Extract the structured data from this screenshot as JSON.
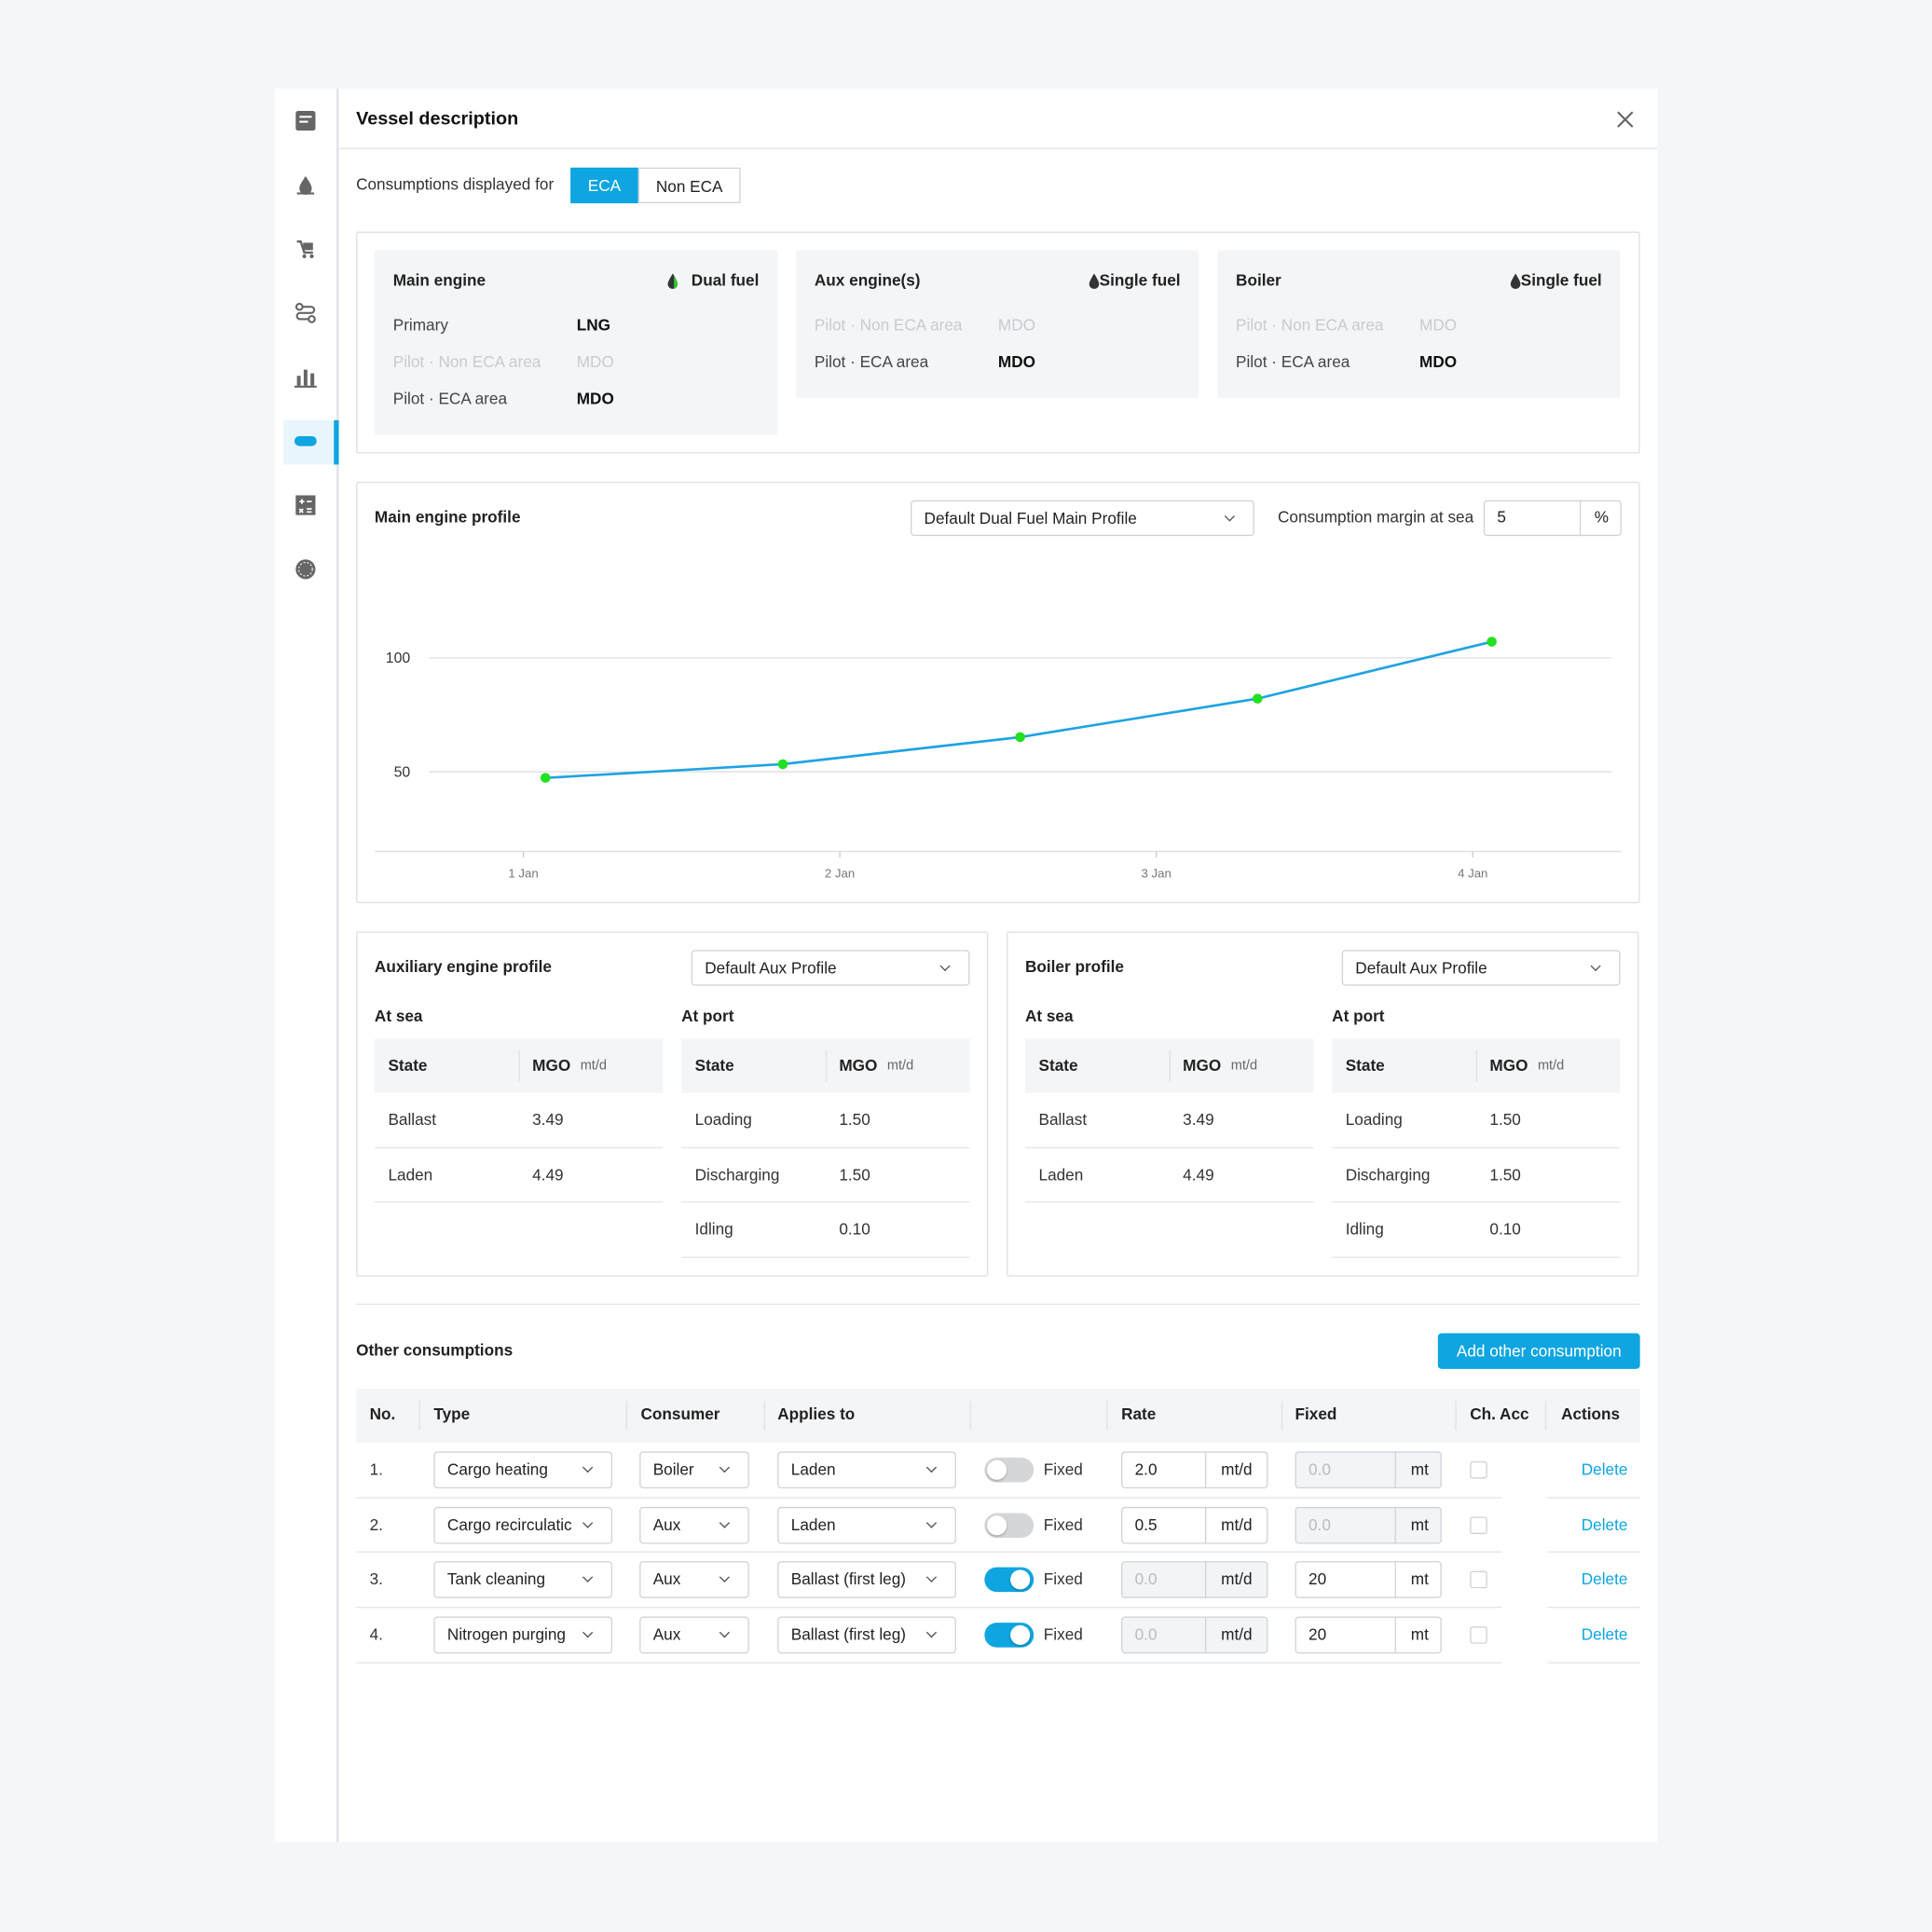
{
  "header": {
    "title": "Vessel description"
  },
  "display_toggle": {
    "label": "Consumptions displayed for",
    "options": [
      "ECA",
      "Non ECA"
    ],
    "selected": 0
  },
  "fuel_cards": [
    {
      "title": "Main engine",
      "fuel_type": "Dual fuel",
      "rows": [
        {
          "label": "Primary",
          "fuel": "LNG",
          "muted": false
        },
        {
          "label": "Pilot · Non ECA area",
          "fuel": "MDO",
          "muted": true
        },
        {
          "label": "Pilot · ECA area",
          "fuel": "MDO",
          "muted": false
        }
      ]
    },
    {
      "title": "Aux engine(s)",
      "fuel_type": "Single fuel",
      "rows": [
        {
          "label": "Pilot · Non ECA area",
          "fuel": "MDO",
          "muted": true
        },
        {
          "label": "Pilot · ECA area",
          "fuel": "MDO",
          "muted": false
        }
      ]
    },
    {
      "title": "Boiler",
      "fuel_type": "Single fuel",
      "rows": [
        {
          "label": "Pilot · Non ECA area",
          "fuel": "MDO",
          "muted": true
        },
        {
          "label": "Pilot · ECA area",
          "fuel": "MDO",
          "muted": false
        }
      ]
    }
  ],
  "main_engine_profile": {
    "title": "Main engine profile",
    "profile": "Default Dual Fuel Main Profile",
    "margin_label": "Consumption margin at sea",
    "margin_value": "5",
    "margin_unit": "%"
  },
  "chart_data": {
    "type": "line",
    "x": [
      1.07,
      1.82,
      2.57,
      3.32,
      4.06
    ],
    "series": [
      {
        "color": "#1ea3e2",
        "marker_color": "#22e022",
        "values": [
          47.3,
          53.3,
          65.2,
          82.1,
          107.1
        ]
      }
    ],
    "xlim": [
      0.53,
      4.47
    ],
    "xticks": [
      {
        "value": 1,
        "label": "1 Jan"
      },
      {
        "value": 2,
        "label": "2 Jan"
      },
      {
        "value": 3,
        "label": "3 Jan"
      },
      {
        "value": 4,
        "label": "4 Jan"
      }
    ],
    "ylim": [
      15,
      140
    ],
    "yticks": [
      50,
      100
    ],
    "grid": true
  },
  "profiles": [
    {
      "title": "Auxiliary engine profile",
      "profile": "Default Aux Profile",
      "tables": [
        {
          "title": "At sea",
          "columns": [
            "State",
            "MGO",
            "mt/d"
          ],
          "rows": [
            [
              "Ballast",
              "3.49"
            ],
            [
              "Laden",
              "4.49"
            ]
          ]
        },
        {
          "title": "At port",
          "columns": [
            "State",
            "MGO",
            "mt/d"
          ],
          "rows": [
            [
              "Loading",
              "1.50"
            ],
            [
              "Discharging",
              "1.50"
            ],
            [
              "Idling",
              "0.10"
            ]
          ]
        }
      ]
    },
    {
      "title": "Boiler profile",
      "profile": "Default Aux Profile",
      "tables": [
        {
          "title": "At sea",
          "columns": [
            "State",
            "MGO",
            "mt/d"
          ],
          "rows": [
            [
              "Ballast",
              "3.49"
            ],
            [
              "Laden",
              "4.49"
            ]
          ]
        },
        {
          "title": "At port",
          "columns": [
            "State",
            "MGO",
            "mt/d"
          ],
          "rows": [
            [
              "Loading",
              "1.50"
            ],
            [
              "Discharging",
              "1.50"
            ],
            [
              "Idling",
              "0.10"
            ]
          ]
        }
      ]
    }
  ],
  "other_consumptions": {
    "title": "Other consumptions",
    "add_button": "Add other consumption",
    "columns": [
      "No.",
      "Type",
      "Consumer",
      "Applies to",
      "Rate",
      "Fixed",
      "Ch. Acc",
      "Actions"
    ],
    "rows": [
      {
        "no": "1.",
        "type": "Cargo heating",
        "consumer": "Boiler",
        "applies_to": "Laden",
        "fixed_label": "Fixed",
        "fixed_on": false,
        "rate": "2.0",
        "rate_unit": "mt/d",
        "fixed": "0.0",
        "fixed_unit": "mt",
        "action": "Delete"
      },
      {
        "no": "2.",
        "type": "Cargo recirculatic",
        "consumer": "Aux",
        "applies_to": "Laden",
        "fixed_label": "Fixed",
        "fixed_on": false,
        "rate": "0.5",
        "rate_unit": "mt/d",
        "fixed": "0.0",
        "fixed_unit": "mt",
        "action": "Delete"
      },
      {
        "no": "3.",
        "type": "Tank cleaning",
        "consumer": "Aux",
        "applies_to": "Ballast (first leg)",
        "fixed_label": "Fixed",
        "fixed_on": true,
        "rate": "0.0",
        "rate_unit": "mt/d",
        "fixed": "20",
        "fixed_unit": "mt",
        "action": "Delete"
      },
      {
        "no": "4.",
        "type": "Nitrogen purging",
        "consumer": "Aux",
        "applies_to": "Ballast (first leg)",
        "fixed_label": "Fixed",
        "fixed_on": true,
        "rate": "0.0",
        "rate_unit": "mt/d",
        "fixed": "20",
        "fixed_unit": "mt",
        "action": "Delete"
      }
    ]
  }
}
